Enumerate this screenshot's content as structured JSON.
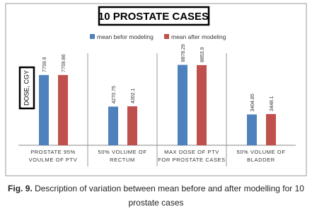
{
  "chart_data": {
    "type": "bar",
    "title": "10 PROSTATE CASES",
    "y_label": "DOSE, CGY",
    "categories": [
      [
        "PROSTATE 95%",
        "VOULME OF PTV"
      ],
      [
        "50% VOLUME OF",
        "RECTUM"
      ],
      [
        "MAX DOSE OF PTV",
        "FOR PROSTATE CASES"
      ],
      [
        "50% VOLUME OF",
        "BLADDER"
      ]
    ],
    "series": [
      {
        "name": "mean befor modeling",
        "color": "#4f81bd",
        "values": [
          7759.9,
          4270.75,
          8878.29,
          3404.85
        ]
      },
      {
        "name": "mean after modeling",
        "color": "#c0504d",
        "values": [
          7759.86,
          4302.1,
          8853.9,
          3448.1
        ]
      }
    ],
    "ylim": [
      0,
      9000
    ]
  },
  "caption": {
    "label": "Fig. 9.",
    "text": "Description of variation between mean before and after modelling for 10 prostate cases"
  }
}
